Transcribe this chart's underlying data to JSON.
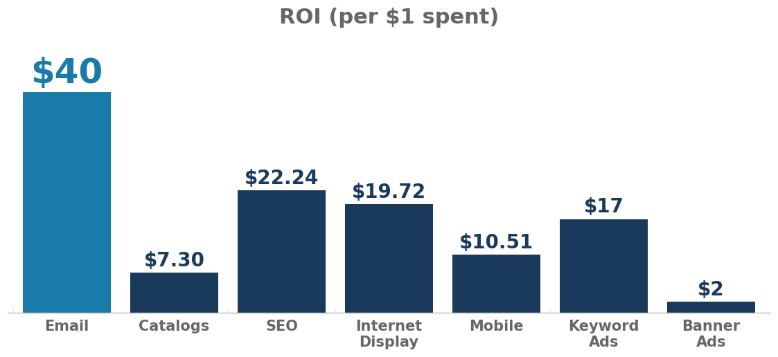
{
  "categories": [
    "Email",
    "Catalogs",
    "SEO",
    "Internet\nDisplay",
    "Mobile",
    "Keyword\nAds",
    "Banner\nAds"
  ],
  "values": [
    40,
    7.3,
    22.24,
    19.72,
    10.51,
    17,
    2
  ],
  "labels": [
    "$40",
    "$7.30",
    "$22.24",
    "$19.72",
    "$10.51",
    "$17",
    "$2"
  ],
  "bar_color_email": "#1a7aaa",
  "bar_color_others": "#1a3a5c",
  "title": "ROI (per $1 spent)",
  "title_fontsize": 22,
  "title_color": "#666666",
  "label_fontsize_email": 36,
  "label_fontsize_others": 20,
  "label_color": "#1a3a5c",
  "xlabel_fontsize": 15,
  "xlabel_color": "#666666",
  "background_color": "#ffffff",
  "ylim": [
    0,
    50
  ],
  "bar_width": 0.82
}
